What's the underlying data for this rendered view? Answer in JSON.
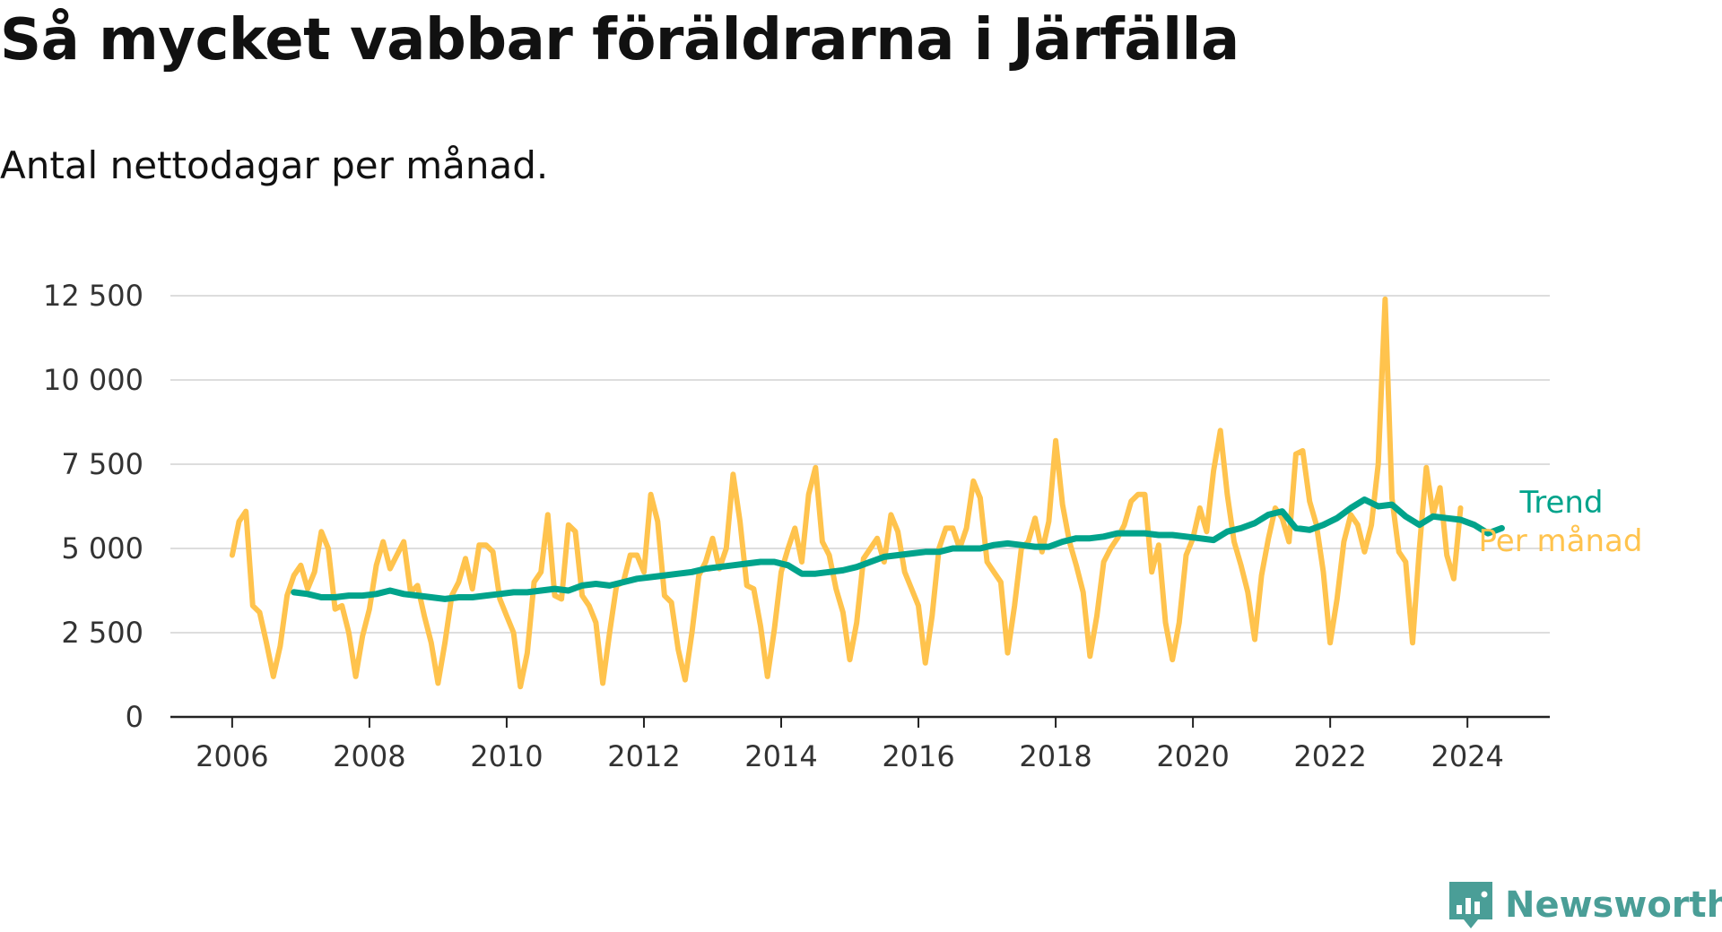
{
  "title": "Så mycket vabbar föräldrarna i Järfälla",
  "subtitle": "Antal nettodagar per månad.",
  "brand": {
    "name": "Newsworthy",
    "color": "#4a9e97",
    "icon": "newsworthy-logo-icon"
  },
  "colors": {
    "monthly": "#ffc34d",
    "trend": "#00a38b",
    "grid": "#dddddd",
    "axis": "#222222"
  },
  "chart_data": {
    "type": "line",
    "title": "Så mycket vabbar föräldrarna i Järfälla",
    "subtitle": "Antal nettodagar per månad.",
    "xlabel": "",
    "ylabel": "",
    "xlim": [
      2005.1,
      2025.2
    ],
    "ylim": [
      0,
      12500
    ],
    "y_ticks": [
      0,
      2500,
      5000,
      7500,
      10000,
      12500
    ],
    "y_tick_labels": [
      "0",
      "2 500",
      "5 000",
      "7 500",
      "10 000",
      "12 500"
    ],
    "x_ticks": [
      2006,
      2008,
      2010,
      2012,
      2014,
      2016,
      2018,
      2020,
      2022,
      2024
    ],
    "x_tick_labels": [
      "2006",
      "2008",
      "2010",
      "2012",
      "2014",
      "2016",
      "2018",
      "2020",
      "2022",
      "2024"
    ],
    "grid": "horizontal",
    "legend": "direct labels at line ends (right)",
    "series": [
      {
        "name": "Per månad",
        "color": "#ffc34d",
        "points": [
          [
            2006.0,
            4800
          ],
          [
            2006.1,
            5800
          ],
          [
            2006.2,
            6100
          ],
          [
            2006.3,
            3300
          ],
          [
            2006.4,
            3100
          ],
          [
            2006.5,
            2200
          ],
          [
            2006.6,
            1200
          ],
          [
            2006.7,
            2100
          ],
          [
            2006.8,
            3600
          ],
          [
            2006.9,
            4200
          ],
          [
            2007.0,
            4500
          ],
          [
            2007.1,
            3800
          ],
          [
            2007.2,
            4300
          ],
          [
            2007.3,
            5500
          ],
          [
            2007.4,
            5000
          ],
          [
            2007.5,
            3200
          ],
          [
            2007.6,
            3300
          ],
          [
            2007.7,
            2500
          ],
          [
            2007.8,
            1200
          ],
          [
            2007.9,
            2400
          ],
          [
            2008.0,
            3200
          ],
          [
            2008.1,
            4500
          ],
          [
            2008.2,
            5200
          ],
          [
            2008.3,
            4400
          ],
          [
            2008.4,
            4800
          ],
          [
            2008.5,
            5200
          ],
          [
            2008.6,
            3700
          ],
          [
            2008.7,
            3900
          ],
          [
            2008.8,
            3000
          ],
          [
            2008.9,
            2200
          ],
          [
            2009.0,
            1000
          ],
          [
            2009.1,
            2200
          ],
          [
            2009.2,
            3600
          ],
          [
            2009.3,
            4000
          ],
          [
            2009.4,
            4700
          ],
          [
            2009.5,
            3800
          ],
          [
            2009.6,
            5100
          ],
          [
            2009.7,
            5100
          ],
          [
            2009.8,
            4900
          ],
          [
            2009.9,
            3500
          ],
          [
            2010.0,
            3000
          ],
          [
            2010.1,
            2500
          ],
          [
            2010.2,
            900
          ],
          [
            2010.3,
            1900
          ],
          [
            2010.4,
            4000
          ],
          [
            2010.5,
            4300
          ],
          [
            2010.6,
            6000
          ],
          [
            2010.7,
            3600
          ],
          [
            2010.8,
            3500
          ],
          [
            2010.9,
            5700
          ],
          [
            2011.0,
            5500
          ],
          [
            2011.1,
            3600
          ],
          [
            2011.2,
            3300
          ],
          [
            2011.3,
            2800
          ],
          [
            2011.4,
            1000
          ],
          [
            2011.5,
            2500
          ],
          [
            2011.6,
            3900
          ],
          [
            2011.7,
            4000
          ],
          [
            2011.8,
            4800
          ],
          [
            2011.9,
            4800
          ],
          [
            2012.0,
            4300
          ],
          [
            2012.1,
            6600
          ],
          [
            2012.2,
            5800
          ],
          [
            2012.3,
            3600
          ],
          [
            2012.4,
            3400
          ],
          [
            2012.5,
            2000
          ],
          [
            2012.6,
            1100
          ],
          [
            2012.7,
            2500
          ],
          [
            2012.8,
            4200
          ],
          [
            2012.9,
            4600
          ],
          [
            2013.0,
            5300
          ],
          [
            2013.1,
            4400
          ],
          [
            2013.2,
            5000
          ],
          [
            2013.3,
            7200
          ],
          [
            2013.4,
            5800
          ],
          [
            2013.5,
            3900
          ],
          [
            2013.6,
            3800
          ],
          [
            2013.7,
            2700
          ],
          [
            2013.8,
            1200
          ],
          [
            2013.9,
            2600
          ],
          [
            2014.0,
            4300
          ],
          [
            2014.1,
            5000
          ],
          [
            2014.2,
            5600
          ],
          [
            2014.3,
            4600
          ],
          [
            2014.4,
            6600
          ],
          [
            2014.5,
            7400
          ],
          [
            2014.6,
            5200
          ],
          [
            2014.7,
            4800
          ],
          [
            2014.8,
            3800
          ],
          [
            2014.9,
            3100
          ],
          [
            2015.0,
            1700
          ],
          [
            2015.1,
            2800
          ],
          [
            2015.2,
            4700
          ],
          [
            2015.3,
            5000
          ],
          [
            2015.4,
            5300
          ],
          [
            2015.5,
            4600
          ],
          [
            2015.6,
            6000
          ],
          [
            2015.7,
            5500
          ],
          [
            2015.8,
            4300
          ],
          [
            2015.9,
            3800
          ],
          [
            2016.0,
            3300
          ],
          [
            2016.1,
            1600
          ],
          [
            2016.2,
            3000
          ],
          [
            2016.3,
            5000
          ],
          [
            2016.4,
            5600
          ],
          [
            2016.5,
            5600
          ],
          [
            2016.6,
            5000
          ],
          [
            2016.7,
            5600
          ],
          [
            2016.8,
            7000
          ],
          [
            2016.9,
            6500
          ],
          [
            2017.0,
            4600
          ],
          [
            2017.1,
            4300
          ],
          [
            2017.2,
            4000
          ],
          [
            2017.3,
            1900
          ],
          [
            2017.4,
            3300
          ],
          [
            2017.5,
            5000
          ],
          [
            2017.6,
            5200
          ],
          [
            2017.7,
            5900
          ],
          [
            2017.8,
            4900
          ],
          [
            2017.9,
            5800
          ],
          [
            2018.0,
            8200
          ],
          [
            2018.1,
            6300
          ],
          [
            2018.2,
            5200
          ],
          [
            2018.3,
            4500
          ],
          [
            2018.4,
            3700
          ],
          [
            2018.5,
            1800
          ],
          [
            2018.6,
            3000
          ],
          [
            2018.7,
            4600
          ],
          [
            2018.8,
            5000
          ],
          [
            2018.9,
            5300
          ],
          [
            2019.0,
            5700
          ],
          [
            2019.1,
            6400
          ],
          [
            2019.2,
            6600
          ],
          [
            2019.3,
            6600
          ],
          [
            2019.4,
            4300
          ],
          [
            2019.5,
            5100
          ],
          [
            2019.6,
            2800
          ],
          [
            2019.7,
            1700
          ],
          [
            2019.8,
            2800
          ],
          [
            2019.9,
            4800
          ],
          [
            2020.0,
            5300
          ],
          [
            2020.1,
            6200
          ],
          [
            2020.2,
            5500
          ],
          [
            2020.3,
            7300
          ],
          [
            2020.4,
            8500
          ],
          [
            2020.5,
            6600
          ],
          [
            2020.6,
            5200
          ],
          [
            2020.7,
            4500
          ],
          [
            2020.8,
            3700
          ],
          [
            2020.9,
            2300
          ],
          [
            2021.0,
            4200
          ],
          [
            2021.1,
            5300
          ],
          [
            2021.2,
            6200
          ],
          [
            2021.3,
            5900
          ],
          [
            2021.4,
            5200
          ],
          [
            2021.5,
            7800
          ],
          [
            2021.6,
            7900
          ],
          [
            2021.7,
            6400
          ],
          [
            2021.8,
            5700
          ],
          [
            2021.9,
            4300
          ],
          [
            2022.0,
            2200
          ],
          [
            2022.1,
            3500
          ],
          [
            2022.2,
            5200
          ],
          [
            2022.3,
            6000
          ],
          [
            2022.4,
            5700
          ],
          [
            2022.5,
            4900
          ],
          [
            2022.6,
            5700
          ],
          [
            2022.7,
            7500
          ],
          [
            2022.8,
            12400
          ],
          [
            2022.9,
            6500
          ],
          [
            2023.0,
            4900
          ],
          [
            2023.1,
            4600
          ],
          [
            2023.2,
            2200
          ],
          [
            2023.3,
            5000
          ],
          [
            2023.4,
            7400
          ],
          [
            2023.5,
            6000
          ],
          [
            2023.6,
            6800
          ],
          [
            2023.7,
            4800
          ],
          [
            2023.8,
            4100
          ],
          [
            2023.9,
            6200
          ]
        ]
      },
      {
        "name": "Trend",
        "color": "#00a38b",
        "points": [
          [
            2006.9,
            3700
          ],
          [
            2007.1,
            3650
          ],
          [
            2007.3,
            3550
          ],
          [
            2007.5,
            3550
          ],
          [
            2007.7,
            3600
          ],
          [
            2007.9,
            3600
          ],
          [
            2008.1,
            3650
          ],
          [
            2008.3,
            3750
          ],
          [
            2008.5,
            3650
          ],
          [
            2008.7,
            3600
          ],
          [
            2008.9,
            3550
          ],
          [
            2009.1,
            3500
          ],
          [
            2009.3,
            3550
          ],
          [
            2009.5,
            3550
          ],
          [
            2009.7,
            3600
          ],
          [
            2009.9,
            3650
          ],
          [
            2010.1,
            3700
          ],
          [
            2010.3,
            3700
          ],
          [
            2010.5,
            3750
          ],
          [
            2010.7,
            3800
          ],
          [
            2010.9,
            3750
          ],
          [
            2011.1,
            3900
          ],
          [
            2011.3,
            3950
          ],
          [
            2011.5,
            3900
          ],
          [
            2011.7,
            4000
          ],
          [
            2011.9,
            4100
          ],
          [
            2012.1,
            4150
          ],
          [
            2012.3,
            4200
          ],
          [
            2012.5,
            4250
          ],
          [
            2012.7,
            4300
          ],
          [
            2012.9,
            4400
          ],
          [
            2013.1,
            4450
          ],
          [
            2013.3,
            4500
          ],
          [
            2013.5,
            4550
          ],
          [
            2013.7,
            4600
          ],
          [
            2013.9,
            4600
          ],
          [
            2014.1,
            4500
          ],
          [
            2014.3,
            4250
          ],
          [
            2014.5,
            4250
          ],
          [
            2014.7,
            4300
          ],
          [
            2014.9,
            4350
          ],
          [
            2015.1,
            4450
          ],
          [
            2015.3,
            4600
          ],
          [
            2015.5,
            4750
          ],
          [
            2015.7,
            4800
          ],
          [
            2015.9,
            4850
          ],
          [
            2016.1,
            4900
          ],
          [
            2016.3,
            4900
          ],
          [
            2016.5,
            5000
          ],
          [
            2016.7,
            5000
          ],
          [
            2016.9,
            5000
          ],
          [
            2017.1,
            5100
          ],
          [
            2017.3,
            5150
          ],
          [
            2017.5,
            5100
          ],
          [
            2017.7,
            5050
          ],
          [
            2017.9,
            5050
          ],
          [
            2018.1,
            5200
          ],
          [
            2018.3,
            5300
          ],
          [
            2018.5,
            5300
          ],
          [
            2018.7,
            5350
          ],
          [
            2018.9,
            5450
          ],
          [
            2019.1,
            5450
          ],
          [
            2019.3,
            5450
          ],
          [
            2019.5,
            5400
          ],
          [
            2019.7,
            5400
          ],
          [
            2019.9,
            5350
          ],
          [
            2020.1,
            5300
          ],
          [
            2020.3,
            5250
          ],
          [
            2020.5,
            5500
          ],
          [
            2020.7,
            5600
          ],
          [
            2020.9,
            5750
          ],
          [
            2021.1,
            6000
          ],
          [
            2021.3,
            6100
          ],
          [
            2021.5,
            5600
          ],
          [
            2021.7,
            5550
          ],
          [
            2021.9,
            5700
          ],
          [
            2022.1,
            5900
          ],
          [
            2022.3,
            6200
          ],
          [
            2022.5,
            6450
          ],
          [
            2022.7,
            6250
          ],
          [
            2022.9,
            6300
          ],
          [
            2023.1,
            5950
          ],
          [
            2023.3,
            5700
          ],
          [
            2023.5,
            5950
          ],
          [
            2023.7,
            5900
          ],
          [
            2023.9,
            5850
          ],
          [
            2024.1,
            5700
          ],
          [
            2024.3,
            5450
          ],
          [
            2024.5,
            5600
          ]
        ]
      }
    ]
  }
}
